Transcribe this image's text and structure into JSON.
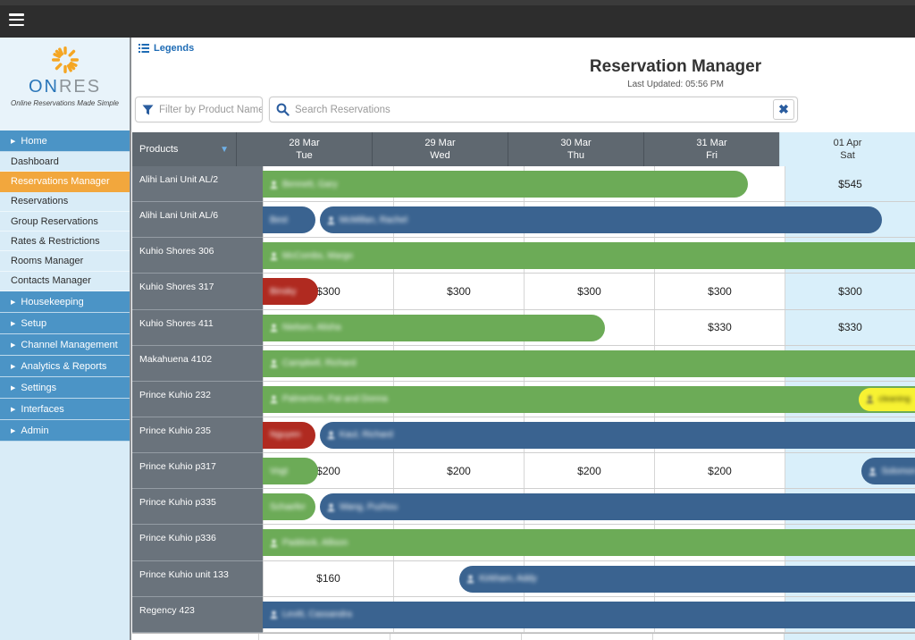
{
  "topbar": {
    "menu_icon": "hamburger-icon"
  },
  "sidebar": {
    "logo": {
      "word_prefix": "ON",
      "word_suffix": "RES",
      "tagline": "Online Reservations Made Simple"
    },
    "items": [
      {
        "label": "Home",
        "style": "blue",
        "arrow": true
      },
      {
        "label": "Dashboard",
        "style": "plain",
        "arrow": false
      },
      {
        "label": "Reservations Manager",
        "style": "orange",
        "arrow": false
      },
      {
        "label": "Reservations",
        "style": "plain",
        "arrow": false
      },
      {
        "label": "Group Reservations",
        "style": "plain",
        "arrow": false
      },
      {
        "label": "Rates & Restrictions",
        "style": "plain",
        "arrow": false
      },
      {
        "label": "Rooms Manager",
        "style": "plain",
        "arrow": false
      },
      {
        "label": "Contacts Manager",
        "style": "plain",
        "arrow": false
      },
      {
        "label": "Housekeeping",
        "style": "blue",
        "arrow": true
      },
      {
        "label": "Setup",
        "style": "blue",
        "arrow": true
      },
      {
        "label": "Channel Management",
        "style": "blue",
        "arrow": true
      },
      {
        "label": "Analytics & Reports",
        "style": "blue",
        "arrow": true
      },
      {
        "label": "Settings",
        "style": "blue",
        "arrow": true
      },
      {
        "label": "Interfaces",
        "style": "blue",
        "arrow": true
      },
      {
        "label": "Admin",
        "style": "blue",
        "arrow": true
      }
    ]
  },
  "header": {
    "legends_label": "Legends",
    "title": "Reservation Manager",
    "last_updated": "Last Updated: 05:56 PM"
  },
  "filters": {
    "product_filter_placeholder": "Filter by Product Name",
    "search_placeholder": "Search Reservations",
    "clear_glyph": "✖"
  },
  "colors": {
    "bar_green": "#6cab57",
    "bar_blue": "#3a6390",
    "bar_red": "#b02a20",
    "bar_yellow": "#f7f232",
    "sidebar_blue": "#4b94c6",
    "highlight_orange": "#f2a73d",
    "header_gray": "#5f6870",
    "weekend_blue": "#d9effa",
    "link_blue": "#1f6cb5"
  },
  "grid": {
    "products_header": "Products",
    "columns": [
      {
        "date": "28 Mar",
        "day": "Tue",
        "weekend": false
      },
      {
        "date": "29 Mar",
        "day": "Wed",
        "weekend": false
      },
      {
        "date": "30 Mar",
        "day": "Thu",
        "weekend": false
      },
      {
        "date": "31 Mar",
        "day": "Fri",
        "weekend": false
      },
      {
        "date": "01 Apr",
        "day": "Sat",
        "weekend": true
      }
    ],
    "rows": [
      {
        "product": "Alihi Lani Unit AL/2",
        "prices": [
          "",
          "",
          "",
          "",
          "$545"
        ],
        "bars": [
          {
            "color": "green",
            "start": 0,
            "end": 3.57,
            "round": "right",
            "icon": true,
            "label": "Bennett, Gary"
          }
        ]
      },
      {
        "product": "Alihi Lani Unit AL/6",
        "prices": [
          "",
          "",
          "",
          "",
          ""
        ],
        "bars": [
          {
            "color": "blue",
            "start": 0,
            "end": 0.39,
            "round": "right",
            "icon": false,
            "label": "Best"
          },
          {
            "color": "blue",
            "start": 0.42,
            "end": 4.56,
            "round": "both",
            "icon": true,
            "label": "McMillan, Rachel"
          }
        ]
      },
      {
        "product": "Kuhio Shores 306",
        "prices": [
          "",
          "",
          "",
          "",
          ""
        ],
        "bars": [
          {
            "color": "green",
            "start": 0,
            "end": 5.1,
            "round": "none",
            "icon": true,
            "label": "McCombs, Margo"
          }
        ]
      },
      {
        "product": "Kuhio Shores 317",
        "prices": [
          "$300",
          "$300",
          "$300",
          "$300",
          "$300"
        ],
        "bars": [
          {
            "color": "red",
            "start": 0,
            "end": 0.41,
            "round": "right",
            "icon": false,
            "label": "Binsky"
          }
        ]
      },
      {
        "product": "Kuhio Shores 411",
        "prices": [
          "",
          "",
          "",
          "$330",
          "$330"
        ],
        "bars": [
          {
            "color": "green",
            "start": 0,
            "end": 2.52,
            "round": "right",
            "icon": true,
            "label": "Nielsen, Alisha"
          }
        ]
      },
      {
        "product": "Makahuena 4102",
        "prices": [
          "",
          "",
          "",
          "",
          ""
        ],
        "bars": [
          {
            "color": "green",
            "start": 0,
            "end": 5.1,
            "round": "none",
            "icon": true,
            "label": "Campbell, Richard"
          }
        ]
      },
      {
        "product": "Prince Kuhio 232",
        "prices": [
          "",
          "",
          "",
          "",
          ""
        ],
        "bars": [
          {
            "color": "green",
            "start": 0,
            "end": 5.1,
            "round": "none",
            "icon": true,
            "label": "Palmerton, Pat and Donna"
          },
          {
            "color": "yellow",
            "start": 4.39,
            "end": 5.1,
            "round": "left",
            "icon": true,
            "label": "cleaning"
          }
        ]
      },
      {
        "product": "Prince Kuhio 235",
        "prices": [
          "",
          "",
          "",
          "",
          ""
        ],
        "bars": [
          {
            "color": "red",
            "start": 0,
            "end": 0.39,
            "round": "right",
            "icon": false,
            "label": "Nguyen"
          },
          {
            "color": "blue",
            "start": 0.42,
            "end": 5.1,
            "round": "left",
            "icon": true,
            "label": "Kaul, Richard"
          }
        ]
      },
      {
        "product": "Prince Kuhio p317",
        "prices": [
          "$200",
          "$200",
          "$200",
          "$200",
          ""
        ],
        "bars": [
          {
            "color": "green",
            "start": 0,
            "end": 0.41,
            "round": "right",
            "icon": false,
            "label": "Vogt"
          },
          {
            "color": "blue",
            "start": 4.41,
            "end": 5.1,
            "round": "left",
            "icon": true,
            "label": "Solomon"
          }
        ]
      },
      {
        "product": "Prince Kuhio p335",
        "prices": [
          "",
          "",
          "",
          "",
          ""
        ],
        "bars": [
          {
            "color": "green",
            "start": 0,
            "end": 0.39,
            "round": "right",
            "icon": false,
            "label": "Schaefer"
          },
          {
            "color": "blue",
            "start": 0.42,
            "end": 5.1,
            "round": "left",
            "icon": true,
            "label": "Wang, Puzhou"
          }
        ]
      },
      {
        "product": "Prince Kuhio p336",
        "prices": [
          "",
          "",
          "",
          "",
          ""
        ],
        "bars": [
          {
            "color": "green",
            "start": 0,
            "end": 5.1,
            "round": "none",
            "icon": true,
            "label": "Paddock, Allison"
          }
        ]
      },
      {
        "product": "Prince Kuhio unit 133",
        "prices": [
          "$160",
          "",
          "",
          "",
          ""
        ],
        "bars": [
          {
            "color": "blue",
            "start": 1.45,
            "end": 5.1,
            "round": "left",
            "icon": true,
            "label": "Kirkham, Addy"
          }
        ]
      },
      {
        "product": "Regency 423",
        "prices": [
          "",
          "",
          "",
          "",
          ""
        ],
        "bars": [
          {
            "color": "blue",
            "start": 0,
            "end": 5.1,
            "round": "none",
            "icon": true,
            "label": "Levitt, Cassandra"
          }
        ]
      }
    ]
  }
}
